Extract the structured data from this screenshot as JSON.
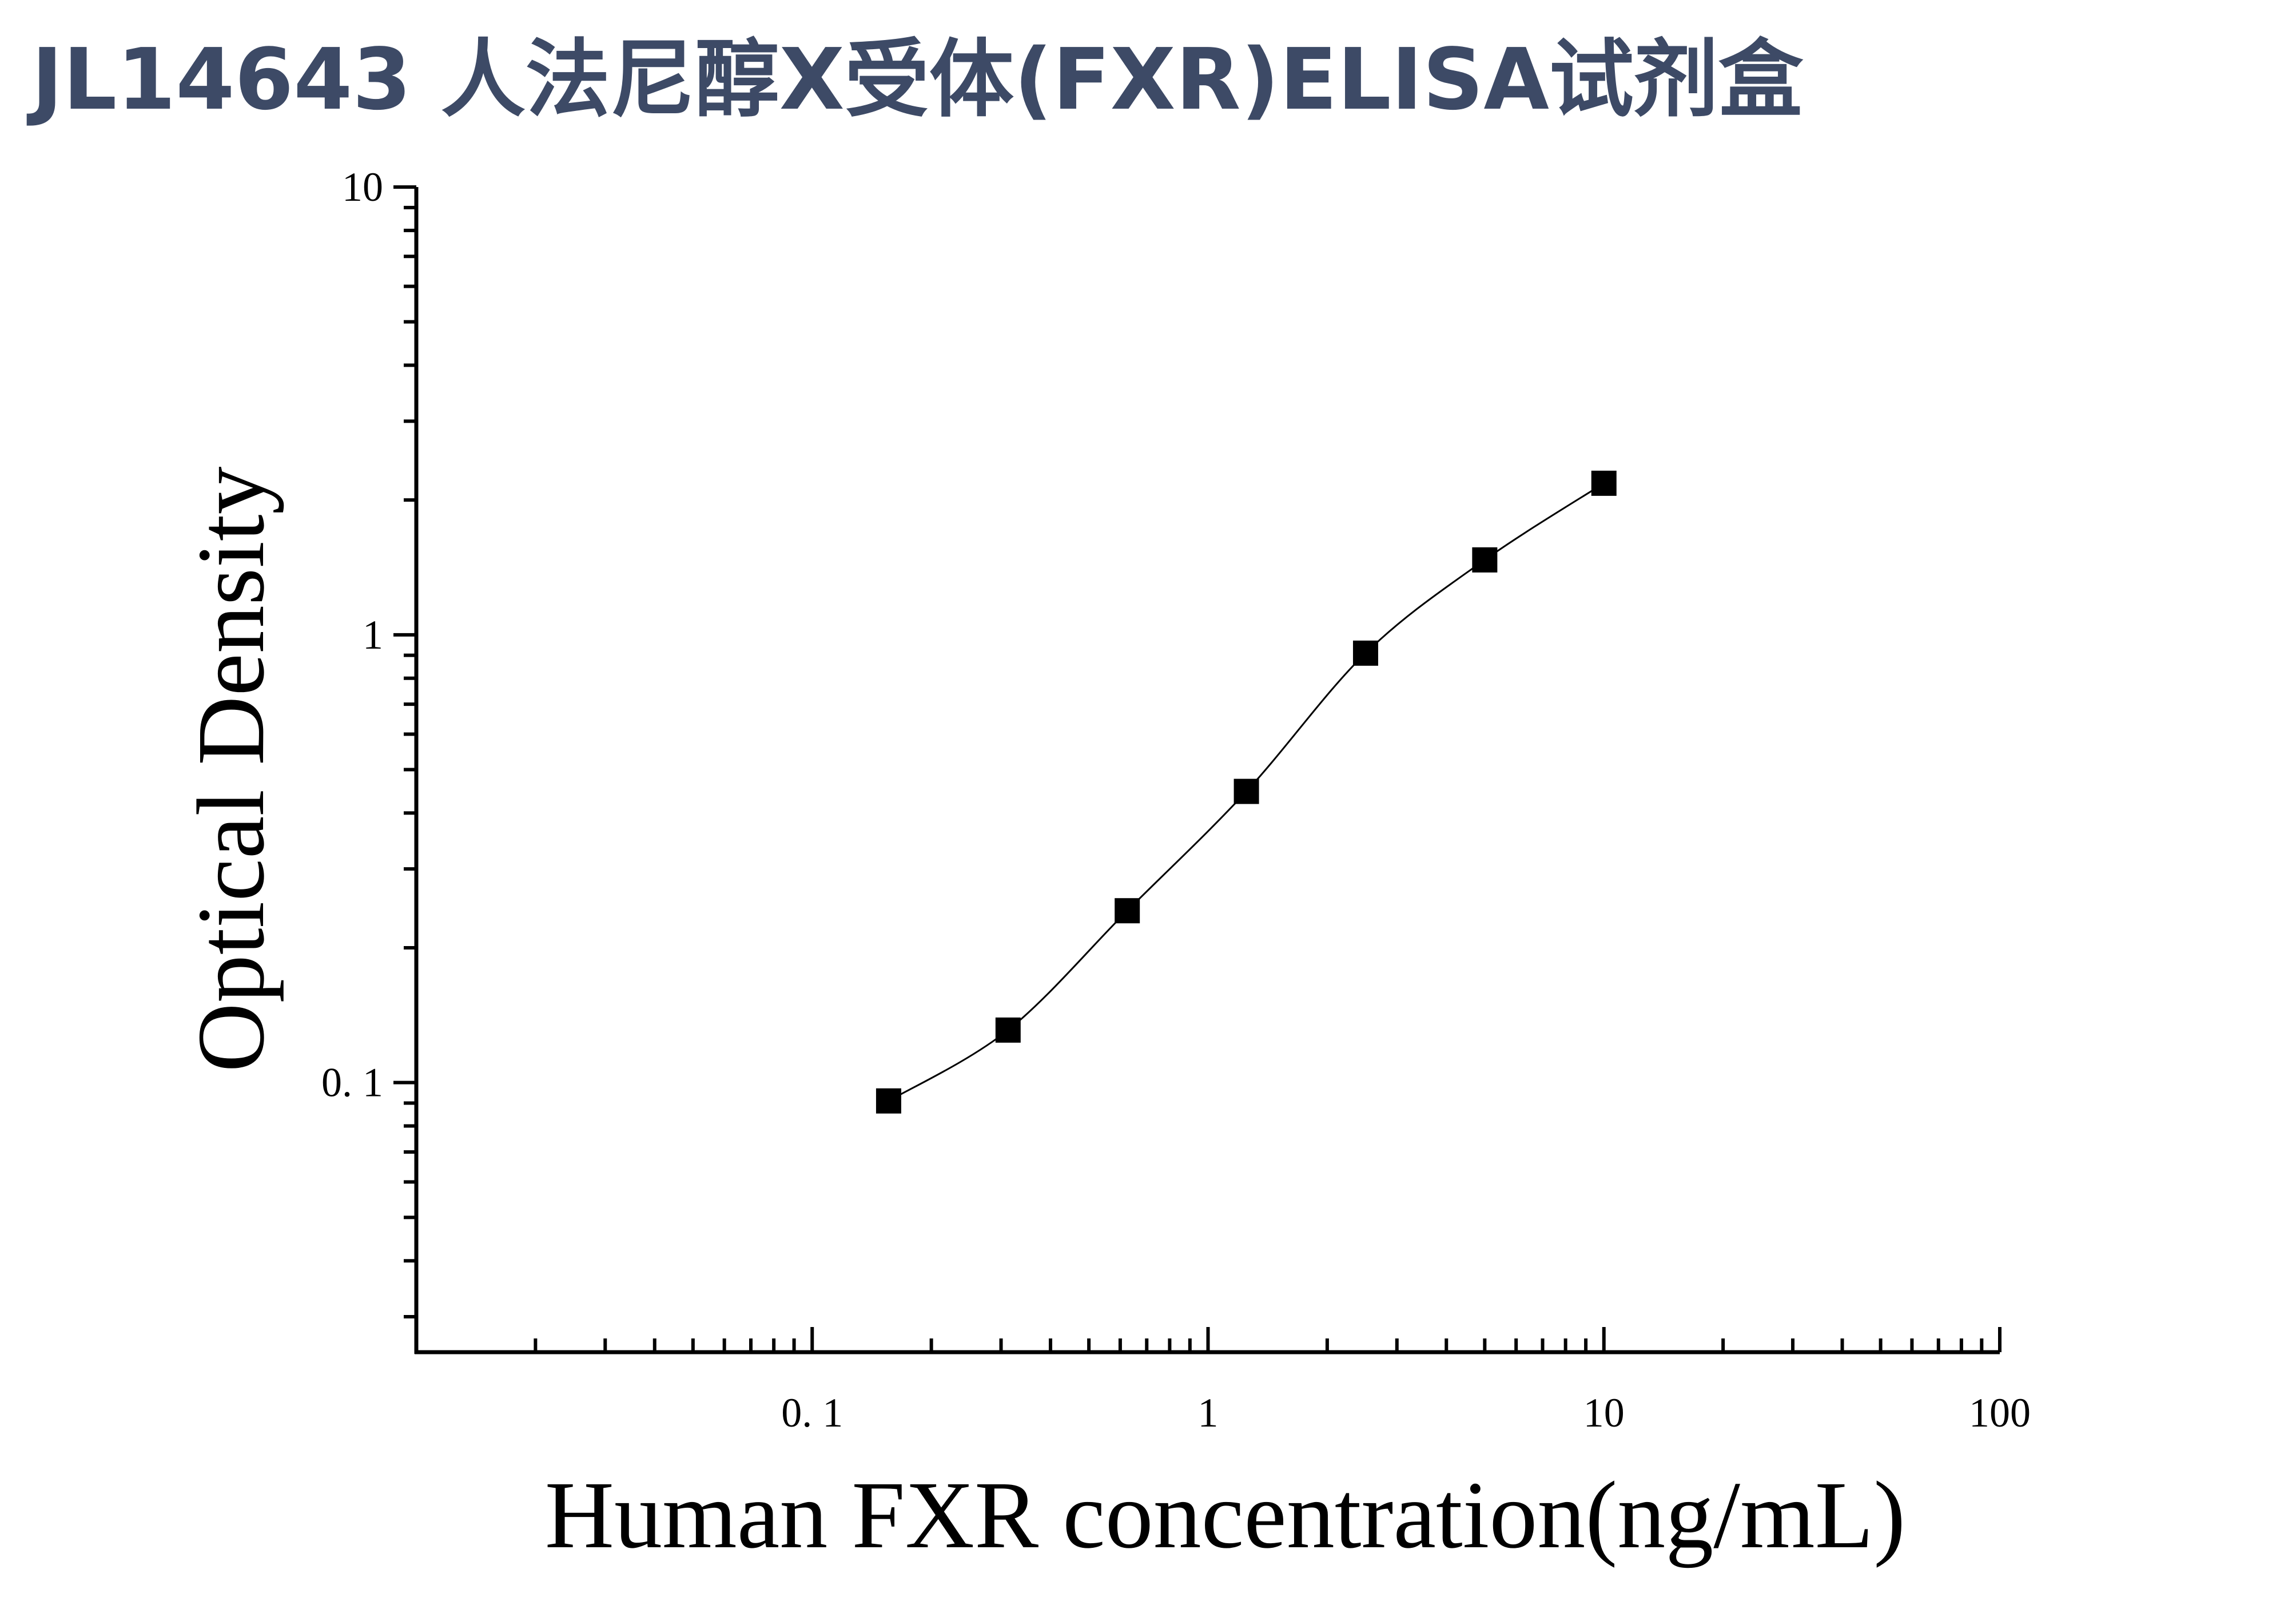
{
  "chart_data": {
    "type": "scatter",
    "title": "JL14643 人法尼醇X受体(FXR)ELISA试剂盒",
    "xlabel": "Human FXR concentration(ng/mL)",
    "ylabel": "Optical Density",
    "xscale": "log",
    "yscale": "log",
    "xlim": [
      0.01,
      100
    ],
    "ylim": [
      0.025,
      10
    ],
    "xticks": [
      0.1,
      1,
      10,
      100
    ],
    "xtick_labels": [
      "0. 1",
      "1",
      "10",
      "100"
    ],
    "yticks": [
      0.1,
      1,
      10
    ],
    "ytick_labels": [
      "0. 1",
      "1",
      "10"
    ],
    "grid": false,
    "legend": "none",
    "series": [
      {
        "x": [
          0.156,
          0.3125,
          0.625,
          1.25,
          2.5,
          5,
          10
        ],
        "y": [
          0.091,
          0.131,
          0.242,
          0.447,
          0.91,
          1.47,
          2.18
        ]
      }
    ]
  },
  "colors": {
    "title": "#3d4a66",
    "marker": "#000000",
    "axis": "#000000",
    "curve": "#000000",
    "background": "#ffffff"
  }
}
